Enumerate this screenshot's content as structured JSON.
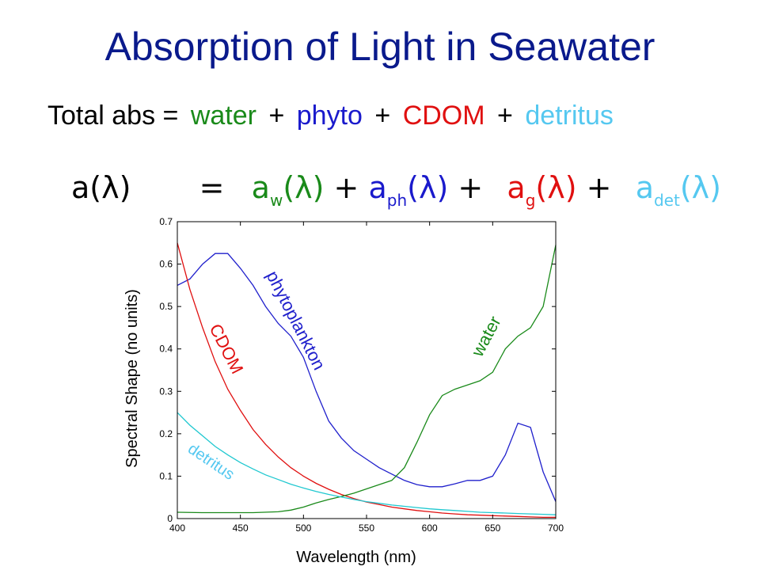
{
  "title": "Absorption of Light in Seawater",
  "equation_words": {
    "total": "Total abs =",
    "water": "water",
    "plus1": "+",
    "phyto": "phyto",
    "plus2": "+",
    "cdom": "CDOM",
    "plus3": "+",
    "detritus": "detritus"
  },
  "equation_symbols": {
    "lhs": "a(λ)",
    "eq": "=",
    "aw": "a",
    "aw_sub": "w",
    "aw_arg": "(λ)",
    "plus1": "+",
    "aph": "a",
    "aph_sub": "ph",
    "aph_arg": "(λ)",
    "plus2": "+",
    "ag": "a",
    "ag_sub": "g",
    "ag_arg": "(λ)",
    "plus3": "+",
    "adet": "a",
    "adet_sub": "det",
    "adet_arg": "(λ)"
  },
  "colors": {
    "title": "#0a1a8c",
    "water": "#1a8a1a",
    "phyto": "#1a1acc",
    "cdom": "#e01010",
    "detritus": "#55c8f0",
    "text": "#000000"
  },
  "chart_data": {
    "type": "line",
    "title": "",
    "xlabel": "Wavelength (nm)",
    "ylabel": "Spectral Shape (no units)",
    "xlim": [
      400,
      700
    ],
    "ylim": [
      0,
      0.7
    ],
    "xticks": [
      400,
      450,
      500,
      550,
      600,
      650,
      700
    ],
    "yticks": [
      0,
      0.1,
      0.2,
      0.3,
      0.4,
      0.5,
      0.6,
      0.7
    ],
    "grid": false,
    "series": [
      {
        "name": "phytoplankton",
        "color": "#2020cc",
        "x": [
          400,
          410,
          420,
          430,
          440,
          450,
          460,
          470,
          480,
          490,
          500,
          510,
          520,
          530,
          540,
          550,
          560,
          570,
          580,
          590,
          600,
          610,
          620,
          630,
          640,
          650,
          660,
          670,
          680,
          690,
          700
        ],
        "y": [
          0.55,
          0.565,
          0.6,
          0.625,
          0.625,
          0.59,
          0.55,
          0.5,
          0.46,
          0.43,
          0.38,
          0.3,
          0.23,
          0.19,
          0.16,
          0.14,
          0.12,
          0.105,
          0.09,
          0.08,
          0.075,
          0.075,
          0.082,
          0.09,
          0.09,
          0.1,
          0.15,
          0.225,
          0.215,
          0.11,
          0.04
        ]
      },
      {
        "name": "CDOM",
        "color": "#e01010",
        "x": [
          400,
          410,
          420,
          430,
          440,
          450,
          460,
          470,
          480,
          490,
          500,
          510,
          520,
          530,
          540,
          550,
          560,
          570,
          580,
          590,
          600,
          610,
          620,
          630,
          640,
          650,
          660,
          670,
          680,
          690,
          700
        ],
        "y": [
          0.65,
          0.54,
          0.45,
          0.37,
          0.305,
          0.255,
          0.21,
          0.175,
          0.145,
          0.12,
          0.1,
          0.083,
          0.069,
          0.057,
          0.047,
          0.039,
          0.033,
          0.027,
          0.023,
          0.019,
          0.016,
          0.013,
          0.011,
          0.009,
          0.008,
          0.007,
          0.006,
          0.005,
          0.004,
          0.003,
          0.003
        ]
      },
      {
        "name": "water",
        "color": "#1a8a1a",
        "x": [
          400,
          420,
          440,
          460,
          480,
          490,
          500,
          510,
          520,
          530,
          540,
          550,
          560,
          570,
          580,
          590,
          600,
          610,
          620,
          630,
          640,
          650,
          660,
          670,
          680,
          690,
          700
        ],
        "y": [
          0.015,
          0.014,
          0.014,
          0.014,
          0.016,
          0.02,
          0.027,
          0.037,
          0.045,
          0.052,
          0.06,
          0.07,
          0.08,
          0.09,
          0.12,
          0.18,
          0.245,
          0.29,
          0.305,
          0.315,
          0.325,
          0.345,
          0.4,
          0.43,
          0.45,
          0.5,
          0.645
        ]
      },
      {
        "name": "detritus",
        "color": "#20c8d0",
        "x": [
          400,
          410,
          420,
          430,
          440,
          450,
          460,
          470,
          480,
          490,
          500,
          510,
          520,
          530,
          540,
          550,
          560,
          570,
          580,
          590,
          600,
          610,
          620,
          630,
          640,
          650,
          660,
          670,
          680,
          690,
          700
        ],
        "y": [
          0.25,
          0.22,
          0.195,
          0.17,
          0.15,
          0.132,
          0.117,
          0.103,
          0.092,
          0.081,
          0.072,
          0.064,
          0.057,
          0.051,
          0.045,
          0.04,
          0.036,
          0.032,
          0.029,
          0.026,
          0.023,
          0.021,
          0.019,
          0.017,
          0.015,
          0.014,
          0.013,
          0.012,
          0.011,
          0.01,
          0.009
        ]
      }
    ],
    "annotations": [
      {
        "text": "phytoplankton",
        "color": "#2020cc"
      },
      {
        "text": "CDOM",
        "color": "#e01010"
      },
      {
        "text": "water",
        "color": "#1a8a1a"
      },
      {
        "text": "detritus",
        "color": "#55c8f0"
      }
    ]
  }
}
